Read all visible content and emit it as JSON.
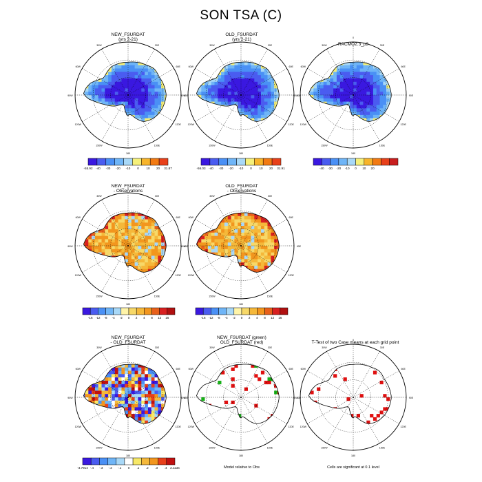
{
  "title": "SON TSA (C)",
  "rows": [
    {
      "panels": [
        {
          "title": [
            "NEW_FSURDAT",
            "(yrs 2-21)"
          ],
          "map_type": "temperature"
        },
        {
          "title": [
            "OLD_FSURDAT",
            "(yrs 2-21)"
          ],
          "map_type": "temperature"
        },
        {
          "title": [
            "RACMO2.3_p2"
          ],
          "map_type": "temperature"
        }
      ],
      "colorbars": [
        {
          "labels": [
            "-55.92",
            "-40",
            "-30",
            "-20",
            "-10",
            "0",
            "10",
            "20",
            "31.87"
          ]
        },
        {
          "labels": [
            "-56.03",
            "-40",
            "-30",
            "-20",
            "-10",
            "0",
            "10",
            "20",
            "31.91"
          ]
        },
        {
          "labels": [
            "-40",
            "-30",
            "-20",
            "-10",
            "0",
            "10",
            "20"
          ]
        }
      ]
    },
    {
      "panels": [
        {
          "title": [
            "NEW_FSURDAT",
            "- Observations"
          ],
          "map_type": "bias"
        },
        {
          "title": [
            "OLD_FSURDAT",
            "- Observations"
          ],
          "map_type": "bias"
        }
      ],
      "colorbars": [
        {
          "labels": [
            "-16",
            "-12",
            "-8",
            "-4",
            "-2",
            "0",
            "2",
            "4",
            "8",
            "12",
            "16"
          ]
        },
        {
          "labels": [
            "-16",
            "-12",
            "-8",
            "-4",
            "-2",
            "0",
            "2",
            "4",
            "8",
            "12",
            "16"
          ]
        }
      ]
    },
    {
      "panels": [
        {
          "title": [
            "NEW_FSURDAT",
            "- OLD_FSURDAT"
          ],
          "map_type": "difference"
        },
        {
          "title": [
            "NEW_FSURDAT (green)",
            "OLD_FSURDAT (red)"
          ],
          "map_type": "relative"
        },
        {
          "title": [
            "T-Test of two Case means at each grid point"
          ],
          "map_type": "ttest"
        }
      ],
      "colorbars": [
        {
          "labels": [
            "-3.7914",
            "-.4",
            "-.3",
            "-.2",
            "-.1",
            "0",
            ".1",
            ".2",
            ".3",
            ".4",
            "2.1134"
          ]
        }
      ],
      "notes": [
        "Model relative to Obs",
        "Cells are significant at 0.1 level"
      ]
    }
  ],
  "longitude_labels": [
    "0",
    "30E",
    "60E",
    "90E",
    "120E",
    "150E",
    "180",
    "150W",
    "120W",
    "90W",
    "60W",
    "30W"
  ],
  "palettes": {
    "temperature": [
      "#3a18e0",
      "#4a5cf0",
      "#4a90f5",
      "#6fb5f7",
      "#a8d8f7",
      "#f5f07a",
      "#f7b42a",
      "#f27a12",
      "#e8401a",
      "#c81e1e"
    ],
    "bias": [
      "#3a18e0",
      "#4a5cf0",
      "#4a90f5",
      "#6fb5f7",
      "#a8d8f7",
      "#fff4a8",
      "#f7d868",
      "#f5b83a",
      "#f2961e",
      "#e8601a",
      "#d82020",
      "#b01010"
    ],
    "difference": [
      "#3a18e0",
      "#4a5cf0",
      "#4a90f5",
      "#6fb5f7",
      "#a8d8f7",
      "#ffffff",
      "#f7e868",
      "#f5b83a",
      "#f2961e",
      "#e8401a",
      "#c01010"
    ],
    "relative_colors": [
      "#18b018",
      "#e01010"
    ]
  }
}
